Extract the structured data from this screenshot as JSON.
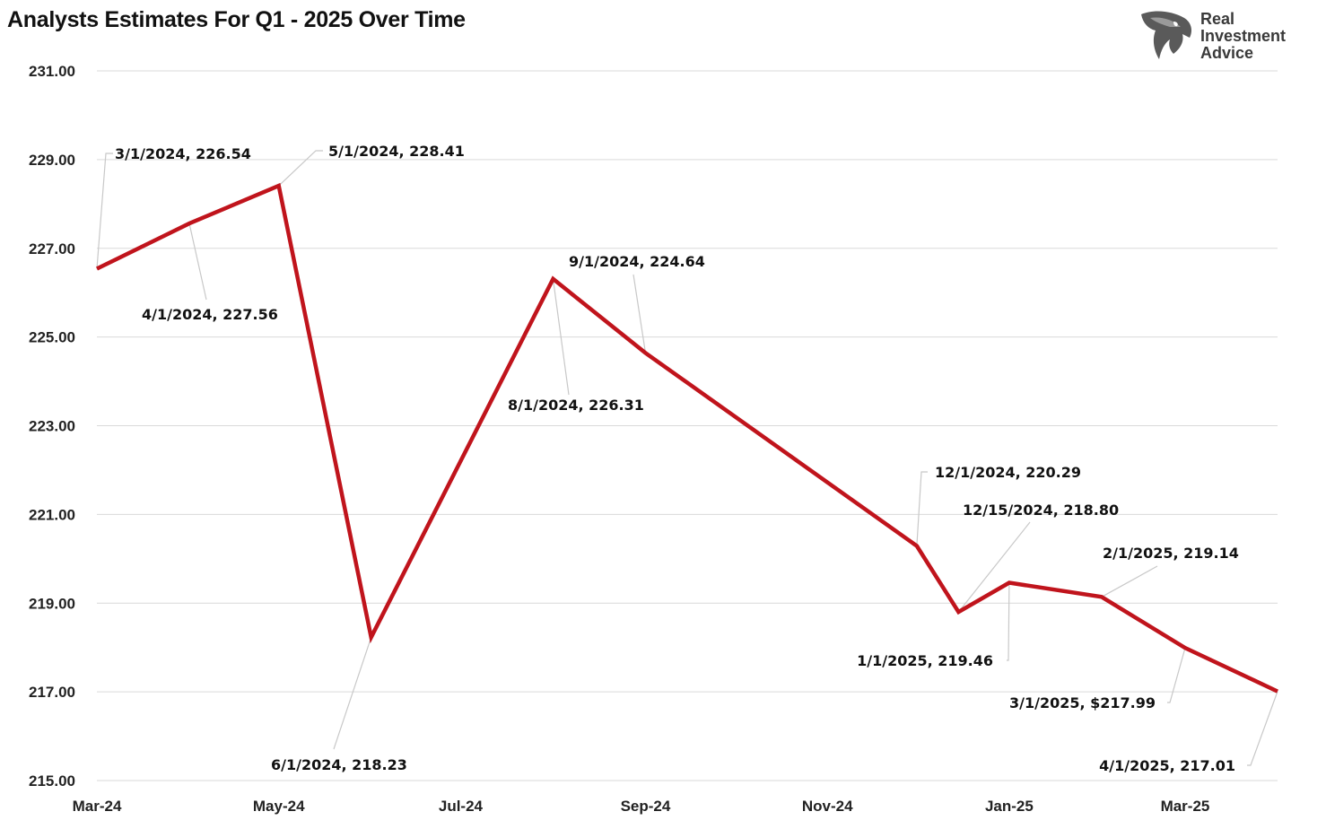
{
  "title": "Analysts Estimates For Q1 - 2025 Over Time",
  "logo": {
    "lines": [
      "Real",
      "Investment",
      "Advice"
    ],
    "icon": "eagle-head-icon"
  },
  "colors": {
    "line": "#c0141c",
    "grid": "#d9d9d9",
    "leader": "#c8c8c8"
  },
  "chart_data": {
    "type": "line",
    "title": "Analysts Estimates For Q1 - 2025 Over Time",
    "xlabel": "",
    "ylabel": "",
    "ylim": [
      215,
      231
    ],
    "yticks": [
      "215.00",
      "217.00",
      "219.00",
      "221.00",
      "223.00",
      "225.00",
      "227.00",
      "229.00",
      "231.00"
    ],
    "xticks": [
      {
        "label": "Mar-24",
        "date": "2024-03-01"
      },
      {
        "label": "May-24",
        "date": "2024-05-01"
      },
      {
        "label": "Jul-24",
        "date": "2024-07-01"
      },
      {
        "label": "Sep-24",
        "date": "2024-09-01"
      },
      {
        "label": "Nov-24",
        "date": "2024-11-01"
      },
      {
        "label": "Jan-25",
        "date": "2025-01-01"
      },
      {
        "label": "Mar-25",
        "date": "2025-03-01"
      }
    ],
    "xlim": [
      "2024-03-01",
      "2025-04-01"
    ],
    "grid": true,
    "legend": "none",
    "series": [
      {
        "points": [
          {
            "date": "2024-03-01",
            "value": 226.54,
            "label": "3/1/2024,  226.54"
          },
          {
            "date": "2024-04-01",
            "value": 227.56,
            "label": "4/1/2024,  227.56"
          },
          {
            "date": "2024-05-01",
            "value": 228.41,
            "label": "5/1/2024,  228.41"
          },
          {
            "date": "2024-06-01",
            "value": 218.23,
            "label": "6/1/2024, 218.23"
          },
          {
            "date": "2024-08-01",
            "value": 226.31,
            "label": "8/1/2024,  226.31"
          },
          {
            "date": "2024-09-01",
            "value": 224.64,
            "label": "9/1/2024,  224.64"
          },
          {
            "date": "2024-12-01",
            "value": 220.29,
            "label": "12/1/2024,  220.29"
          },
          {
            "date": "2024-12-15",
            "value": 218.8,
            "label": "12/15/2024,  218.80"
          },
          {
            "date": "2025-01-01",
            "value": 219.46,
            "label": "1/1/2025,  219.46"
          },
          {
            "date": "2025-02-01",
            "value": 219.14,
            "label": "2/1/2025,  219.14"
          },
          {
            "date": "2025-03-01",
            "value": 217.99,
            "label": "3/1/2025, $217.99"
          },
          {
            "date": "2025-04-01",
            "value": 217.01,
            "label": "4/1/2025,  217.01"
          }
        ]
      }
    ]
  }
}
